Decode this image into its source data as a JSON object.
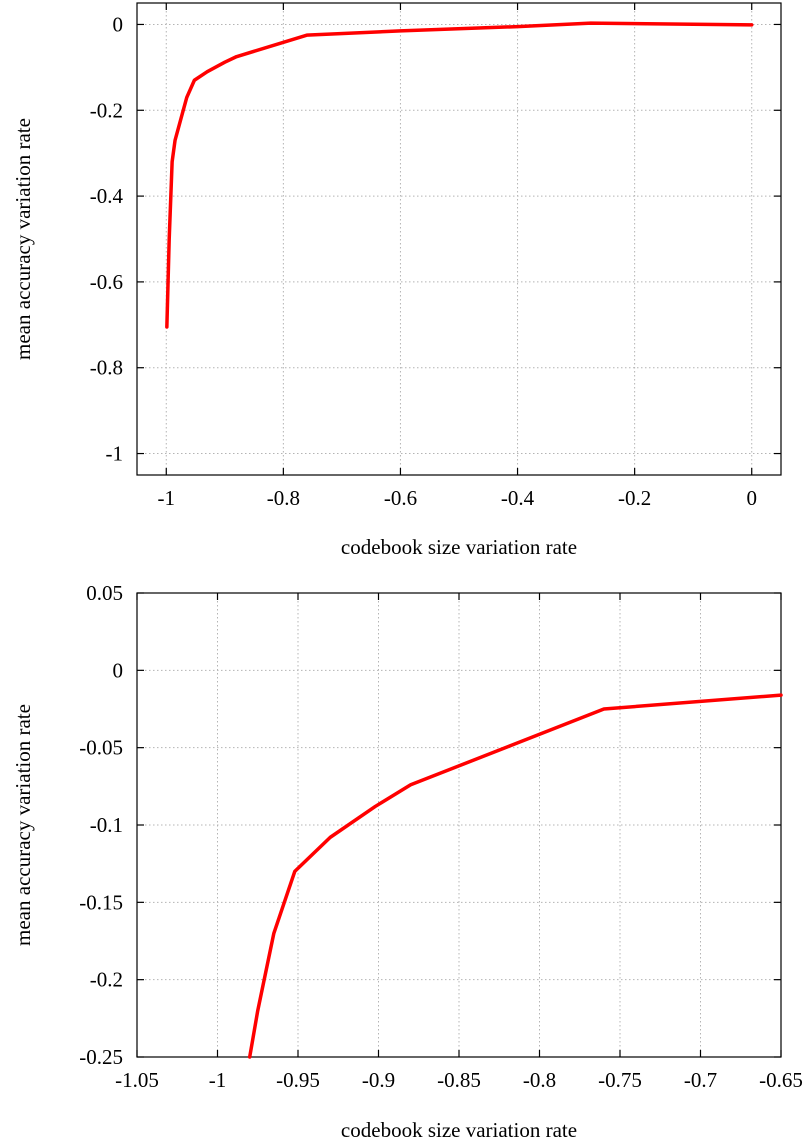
{
  "chart_data": [
    {
      "type": "line",
      "title": "",
      "xlabel": "codebook size variation rate",
      "ylabel": "mean accuracy variation rate",
      "xlim": [
        -1.05,
        0.05
      ],
      "ylim": [
        -1.05,
        0.05
      ],
      "x_ticks": [
        -1,
        -0.8,
        -0.6,
        -0.4,
        -0.2,
        0
      ],
      "x_tick_labels": [
        "-1",
        "-0.8",
        "-0.6",
        "-0.4",
        "-0.2",
        "0"
      ],
      "y_ticks": [
        0,
        -0.2,
        -0.4,
        -0.6,
        -0.8,
        -1
      ],
      "y_tick_labels": [
        "0",
        "-0.2",
        "-0.4",
        "-0.6",
        "-0.8",
        "-1"
      ],
      "grid": true,
      "series": [
        {
          "color": "#ff0000",
          "x": [
            -0.999,
            -0.995,
            -0.99,
            -0.985,
            -0.975,
            -0.965,
            -0.952,
            -0.93,
            -0.9,
            -0.88,
            -0.76,
            -0.6,
            -0.4,
            -0.275,
            0
          ],
          "y": [
            -0.705,
            -0.5,
            -0.32,
            -0.27,
            -0.22,
            -0.17,
            -0.13,
            -0.11,
            -0.088,
            -0.075,
            -0.025,
            -0.015,
            -0.005,
            0.003,
            -0.001
          ]
        }
      ]
    },
    {
      "type": "line",
      "title": "",
      "xlabel": "codebook size variation rate",
      "ylabel": "mean accuracy variation rate",
      "xlim": [
        -1.05,
        -0.65
      ],
      "ylim": [
        -0.25,
        0.05
      ],
      "x_ticks": [
        -1.05,
        -1,
        -0.95,
        -0.9,
        -0.85,
        -0.8,
        -0.75,
        -0.7,
        -0.65
      ],
      "x_tick_labels": [
        "-1.05",
        "-1",
        "-0.95",
        "-0.9",
        "-0.85",
        "-0.8",
        "-0.75",
        "-0.7",
        "-0.65"
      ],
      "y_ticks": [
        0.05,
        0,
        -0.05,
        -0.1,
        -0.15,
        -0.2,
        -0.25
      ],
      "y_tick_labels": [
        "0.05",
        "0",
        "-0.05",
        "-0.1",
        "-0.15",
        "-0.2",
        "-0.25"
      ],
      "grid": true,
      "series": [
        {
          "color": "#ff0000",
          "x": [
            -0.98,
            -0.975,
            -0.965,
            -0.952,
            -0.93,
            -0.902,
            -0.88,
            -0.76,
            -0.65
          ],
          "y": [
            -0.25,
            -0.22,
            -0.17,
            -0.13,
            -0.108,
            -0.088,
            -0.074,
            -0.025,
            -0.016
          ]
        }
      ]
    }
  ]
}
